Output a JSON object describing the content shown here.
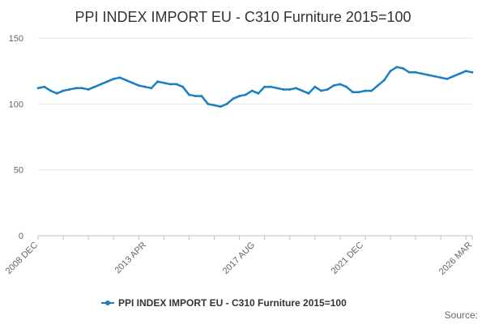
{
  "chart_data": {
    "type": "line",
    "title": "PPI INDEX IMPORT EU - C310 Furniture 2015=100",
    "xlabel": "",
    "ylabel": "",
    "ylim": [
      0,
      150
    ],
    "yticks": [
      "0",
      "50",
      "100",
      "150"
    ],
    "xticks": [
      "2008 DEC",
      "2013 APR",
      "2017 AUG",
      "2021 DEC",
      "2026 MAR"
    ],
    "xlim": [
      "2008-12",
      "2026-03"
    ],
    "grid": true,
    "legend": "bottom",
    "series_color": "#1a7fc1",
    "series": [
      {
        "name": "PPI INDEX IMPORT EU - C310 Furniture 2015=100",
        "x": [
          "2008-12",
          "2009-03",
          "2009-06",
          "2009-09",
          "2009-12",
          "2010-03",
          "2010-06",
          "2010-09",
          "2010-12",
          "2011-03",
          "2011-06",
          "2011-09",
          "2011-12",
          "2012-03",
          "2012-06",
          "2012-09",
          "2012-12",
          "2013-03",
          "2013-06",
          "2013-09",
          "2013-12",
          "2014-03",
          "2014-06",
          "2014-09",
          "2014-12",
          "2015-03",
          "2015-06",
          "2015-09",
          "2015-12",
          "2016-03",
          "2016-06",
          "2016-09",
          "2016-12",
          "2017-03",
          "2017-06",
          "2017-09",
          "2017-12",
          "2018-03",
          "2018-06",
          "2018-09",
          "2018-12",
          "2019-03",
          "2019-06",
          "2019-09",
          "2019-12",
          "2020-03",
          "2020-06",
          "2020-09",
          "2020-12",
          "2021-03",
          "2021-06",
          "2021-09",
          "2021-12",
          "2022-03",
          "2022-06",
          "2022-09",
          "2022-12",
          "2023-03",
          "2023-06",
          "2023-09",
          "2023-12",
          "2024-03",
          "2024-06",
          "2024-09",
          "2024-12",
          "2025-03",
          "2025-06",
          "2025-09",
          "2025-12",
          "2026-03"
        ],
        "values": [
          112,
          113,
          110,
          108,
          110,
          111,
          112,
          112,
          111,
          113,
          115,
          117,
          119,
          120,
          118,
          116,
          114,
          113,
          112,
          117,
          116,
          115,
          115,
          113,
          107,
          106,
          106,
          100,
          99,
          98,
          100,
          104,
          106,
          107,
          110,
          108,
          113,
          113,
          112,
          111,
          111,
          112,
          110,
          108,
          113,
          110,
          111,
          114,
          115,
          113,
          109,
          109,
          110,
          110,
          114,
          118,
          125,
          128,
          127,
          124,
          124,
          123,
          122,
          121,
          120,
          119,
          121,
          123,
          125,
          124
        ]
      }
    ]
  },
  "legend": {
    "label": "PPI INDEX IMPORT EU - C310 Furniture 2015=100"
  },
  "footer": {
    "source_label": "Source:"
  }
}
